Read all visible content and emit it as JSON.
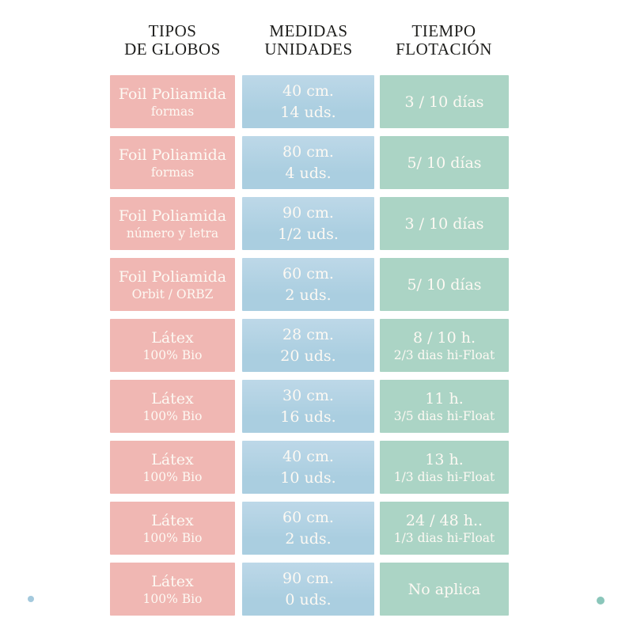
{
  "headers": [
    {
      "line1": "TIPOS",
      "line2": "DE GLOBOS"
    },
    {
      "line1": "MEDIDAS",
      "line2": "UNIDADES"
    },
    {
      "line1": "TIEMPO",
      "line2": "FLOTACIÓN"
    }
  ],
  "rows": [
    {
      "type_line1": "Foil Poliamida",
      "type_line2": "formas",
      "size": "40 cm.",
      "units": "14 uds.",
      "float_line1": "3 / 10 días",
      "float_line2": ""
    },
    {
      "type_line1": "Foil Poliamida",
      "type_line2": "formas",
      "size": "80 cm.",
      "units": "4 uds.",
      "float_line1": "5/ 10 días",
      "float_line2": ""
    },
    {
      "type_line1": "Foil Poliamida",
      "type_line2": "número y letra",
      "size": "90 cm.",
      "units": "1/2 uds.",
      "float_line1": "3 / 10 días",
      "float_line2": ""
    },
    {
      "type_line1": "Foil Poliamida",
      "type_line2": "Orbit / ORBZ",
      "size": "60 cm.",
      "units": "2 uds.",
      "float_line1": "5/ 10 días",
      "float_line2": ""
    },
    {
      "type_line1": "Látex",
      "type_line2": "100% Bio",
      "size": "28 cm.",
      "units": "20 uds.",
      "float_line1": "8 / 10 h.",
      "float_line2": "2/3 dias hi-Float"
    },
    {
      "type_line1": "Látex",
      "type_line2": "100% Bio",
      "size": "30 cm.",
      "units": "16 uds.",
      "float_line1": "11 h.",
      "float_line2": "3/5 dias hi-Float"
    },
    {
      "type_line1": "Látex",
      "type_line2": "100% Bio",
      "size": "40 cm.",
      "units": "10 uds.",
      "float_line1": "13 h.",
      "float_line2": "1/3 dias hi-Float"
    },
    {
      "type_line1": "Látex",
      "type_line2": "100% Bio",
      "size": "60 cm.",
      "units": "2 uds.",
      "float_line1": "24 / 48 h..",
      "float_line2": "1/3 dias hi-Float"
    },
    {
      "type_line1": "Látex",
      "type_line2": "100% Bio",
      "size": "90 cm.",
      "units": "0 uds.",
      "float_line1": "No aplica",
      "float_line2": ""
    }
  ],
  "colors": {
    "type_box": "#f0b7b3",
    "size_box": "#aacee0",
    "size_box_top": "#bdd8e8",
    "float_box": "#abd4c5",
    "box_text": "#fdf9f3",
    "header_text": "#1e1e1c",
    "dot_left": "#a4c9dd",
    "dot_right": "#8ac6ba"
  },
  "chart_data": {
    "type": "table",
    "title": "",
    "columns": [
      "TIPOS DE GLOBOS",
      "MEDIDAS UNIDADES",
      "TIEMPO FLOTACIÓN"
    ],
    "rows": [
      [
        "Foil Poliamida formas",
        "40 cm. 14 uds.",
        "3 / 10 días"
      ],
      [
        "Foil Poliamida formas",
        "80 cm. 4 uds.",
        "5/ 10 días"
      ],
      [
        "Foil Poliamida número y letra",
        "90 cm. 1/2 uds.",
        "3 / 10 días"
      ],
      [
        "Foil Poliamida Orbit / ORBZ",
        "60 cm. 2 uds.",
        "5/ 10 días"
      ],
      [
        "Látex 100% Bio",
        "28 cm. 20 uds.",
        "8 / 10 h. 2/3 dias hi-Float"
      ],
      [
        "Látex 100% Bio",
        "30 cm. 16 uds.",
        "11 h. 3/5 dias hi-Float"
      ],
      [
        "Látex 100% Bio",
        "40 cm. 10 uds.",
        "13 h. 1/3 dias hi-Float"
      ],
      [
        "Látex 100% Bio",
        "60 cm. 2 uds.",
        "24 / 48 h.. 1/3 dias hi-Float"
      ],
      [
        "Látex 100% Bio",
        "90 cm. 0 uds.",
        "No aplica"
      ]
    ],
    "layout": {
      "grid": false,
      "legend": "none",
      "row_colors_by_column": [
        "pink",
        "blue",
        "green"
      ]
    }
  }
}
